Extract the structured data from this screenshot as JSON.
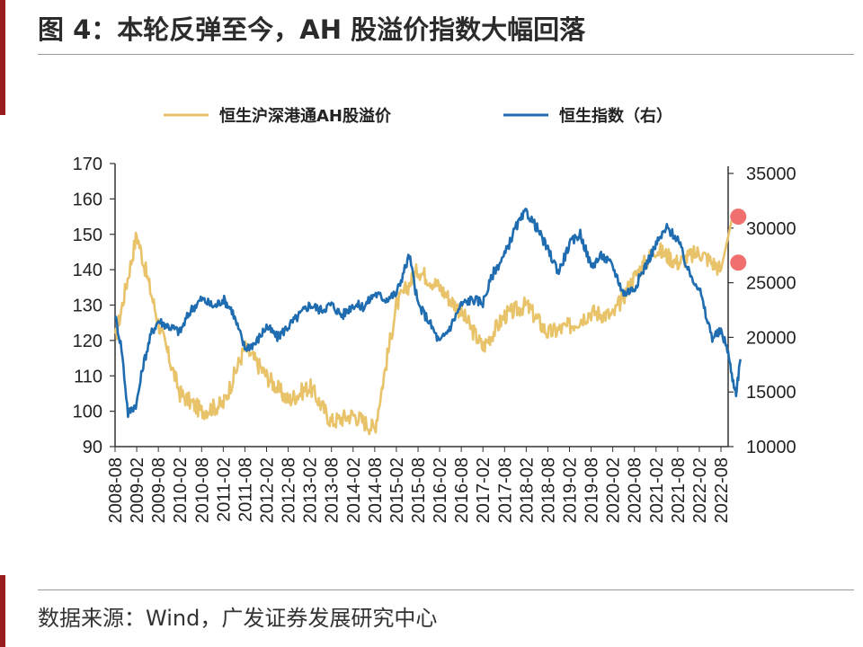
{
  "figure": {
    "title": "图 4：本轮反弹至今，AH 股溢价指数大幅回落",
    "source": "数据来源：Wind，广发证券发展研究中心"
  },
  "chart_data": {
    "type": "line",
    "x": [
      "2008-08",
      "2009-02",
      "2009-08",
      "2010-02",
      "2010-08",
      "2011-02",
      "2011-08",
      "2012-02",
      "2012-08",
      "2013-02",
      "2013-08",
      "2014-02",
      "2014-08",
      "2015-02",
      "2015-08",
      "2016-02",
      "2016-08",
      "2017-02",
      "2017-08",
      "2018-02",
      "2018-08",
      "2019-02",
      "2019-08",
      "2020-02",
      "2020-08",
      "2021-02",
      "2021-08",
      "2022-02",
      "2022-08"
    ],
    "x_tick_labels": [
      "2008-08",
      "2009-02",
      "2009-08",
      "2010-02",
      "2010-08",
      "2011-02",
      "2011-08",
      "2012-02",
      "2012-08",
      "2013-02",
      "2013-08",
      "2014-02",
      "2014-08",
      "2015-02",
      "2015-08",
      "2016-02",
      "2016-08",
      "2017-02",
      "2017-08",
      "2018-02",
      "2018-08",
      "2019-02",
      "2019-08",
      "2020-02",
      "2020-08",
      "2021-02",
      "2021-08",
      "2022-02",
      "2022-08"
    ],
    "y_left": {
      "ylim": [
        90,
        170
      ],
      "ticks": [
        "90",
        "100",
        "110",
        "120",
        "130",
        "140",
        "150",
        "160",
        "170"
      ]
    },
    "y_right": {
      "ylim": [
        10000,
        35000
      ],
      "ticks": [
        "10000",
        "15000",
        "20000",
        "25000",
        "30000",
        "35000"
      ]
    },
    "legend_position": "top",
    "series": [
      {
        "name": "恒生沪深港通AH股溢价",
        "axis": "left",
        "color": "#e8c36a",
        "values": [
          [
            0,
            120
          ],
          [
            1,
            150
          ],
          [
            2,
            125
          ],
          [
            3,
            105
          ],
          [
            4,
            100
          ],
          [
            5,
            102
          ],
          [
            6,
            118
          ],
          [
            7,
            110
          ],
          [
            8,
            103
          ],
          [
            9,
            107
          ],
          [
            10,
            97
          ],
          [
            11,
            99
          ],
          [
            12,
            95
          ],
          [
            13,
            130
          ],
          [
            14,
            140
          ],
          [
            15,
            135
          ],
          [
            16,
            128
          ],
          [
            17,
            118
          ],
          [
            18,
            127
          ],
          [
            19,
            130
          ],
          [
            20,
            122
          ],
          [
            21,
            124
          ],
          [
            22,
            128
          ],
          [
            23,
            127
          ],
          [
            24,
            138
          ],
          [
            25,
            146
          ],
          [
            26,
            142
          ],
          [
            27,
            145
          ],
          [
            28,
            140
          ]
        ],
        "end": [
          28.5,
          154
        ]
      },
      {
        "name": "恒生指数（右）",
        "axis": "right",
        "color": "#1f6db0",
        "values": [
          [
            0,
            22000
          ],
          [
            0.3,
            19000
          ],
          [
            0.6,
            13000
          ],
          [
            1,
            14000
          ],
          [
            1.3,
            17500
          ],
          [
            1.7,
            20500
          ],
          [
            2,
            21500
          ],
          [
            2.5,
            21000
          ],
          [
            3,
            20500
          ],
          [
            3.5,
            22500
          ],
          [
            4,
            23500
          ],
          [
            4.6,
            22800
          ],
          [
            5,
            23500
          ],
          [
            5.4,
            22500
          ],
          [
            6,
            19000
          ],
          [
            6.5,
            19500
          ],
          [
            7,
            21000
          ],
          [
            7.5,
            20000
          ],
          [
            8,
            21000
          ],
          [
            8.5,
            22000
          ],
          [
            9,
            23000
          ],
          [
            9.5,
            22500
          ],
          [
            10,
            23000
          ],
          [
            10.5,
            22000
          ],
          [
            11,
            23000
          ],
          [
            11.5,
            22800
          ],
          [
            12,
            24000
          ],
          [
            12.5,
            23500
          ],
          [
            13,
            24000
          ],
          [
            13.6,
            27500
          ],
          [
            14,
            23000
          ],
          [
            14.5,
            21500
          ],
          [
            15,
            19500
          ],
          [
            15.5,
            21000
          ],
          [
            16,
            23000
          ],
          [
            16.5,
            23500
          ],
          [
            17,
            23200
          ],
          [
            17.5,
            26000
          ],
          [
            18,
            27500
          ],
          [
            18.5,
            30000
          ],
          [
            19,
            31500
          ],
          [
            19.5,
            30000
          ],
          [
            20,
            28000
          ],
          [
            20.5,
            26000
          ],
          [
            21,
            28500
          ],
          [
            21.5,
            29500
          ],
          [
            22,
            26500
          ],
          [
            22.5,
            27500
          ],
          [
            23,
            26500
          ],
          [
            23.5,
            24000
          ],
          [
            24,
            24500
          ],
          [
            24.5,
            26500
          ],
          [
            25,
            28500
          ],
          [
            25.5,
            30000
          ],
          [
            26,
            29000
          ],
          [
            26.5,
            26000
          ],
          [
            27,
            24500
          ],
          [
            27.3,
            22000
          ],
          [
            27.6,
            20000
          ],
          [
            28,
            20500
          ],
          [
            28.3,
            19000
          ],
          [
            28.5,
            16500
          ],
          [
            28.7,
            15000
          ],
          [
            28.9,
            18000
          ]
        ]
      }
    ],
    "highlight_points": [
      {
        "axis": "left",
        "x": 28.8,
        "y": 155
      },
      {
        "axis": "left",
        "x": 28.8,
        "y": 142
      }
    ],
    "highlight_color": "#f07070",
    "grid": false
  }
}
